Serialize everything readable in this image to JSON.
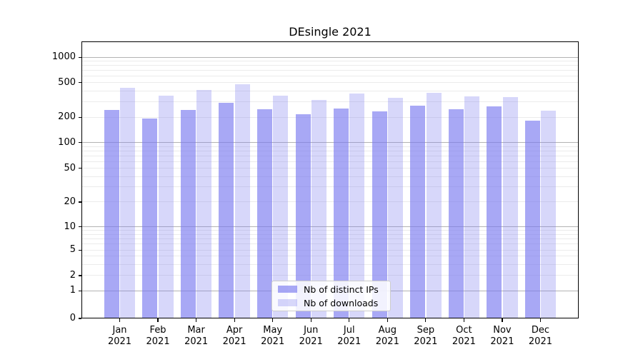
{
  "chart_data": {
    "type": "bar",
    "title": "DEsingle 2021",
    "categories": [
      "Jan",
      "Feb",
      "Mar",
      "Apr",
      "May",
      "Jun",
      "Jul",
      "Aug",
      "Sep",
      "Oct",
      "Nov",
      "Dec"
    ],
    "category_year": "2021",
    "series": [
      {
        "name": "Nb of distinct IPs",
        "values": [
          245,
          193,
          241,
          292,
          248,
          216,
          250,
          234,
          270,
          246,
          265,
          182
        ],
        "fill": "rgba(122,122,240,0.65)"
      },
      {
        "name": "Nb of downloads",
        "values": [
          438,
          353,
          410,
          480,
          352,
          315,
          378,
          336,
          383,
          348,
          341,
          238
        ],
        "fill": "rgba(122,122,240,0.30)"
      }
    ],
    "xlabel": "",
    "ylabel": "",
    "yscale": "symlog",
    "yticks": [
      0,
      1,
      2,
      5,
      10,
      20,
      50,
      100,
      200,
      500,
      1000
    ],
    "ylim": [
      0,
      1550
    ],
    "grid": true,
    "legend_position": "lower center",
    "colors": {
      "bar_base": "#7a7af0",
      "grid_major": "#b3b3b3",
      "grid_minor": "#ebebeb",
      "axis": "#000000",
      "background": "#ffffff"
    }
  }
}
